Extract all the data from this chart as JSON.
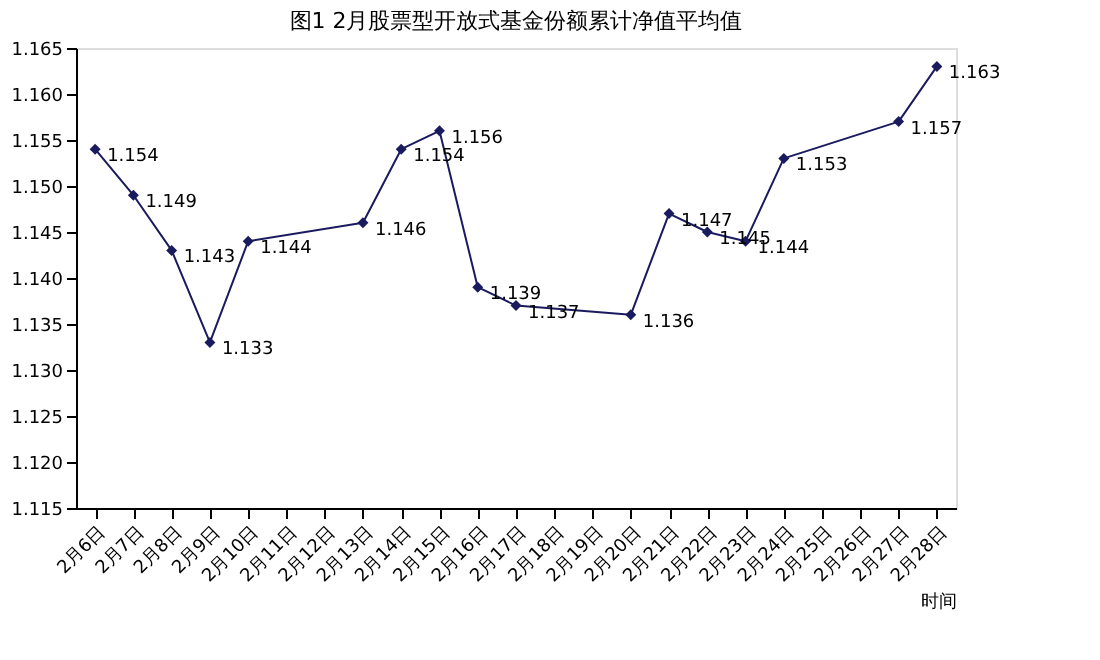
{
  "chart_data": {
    "type": "line",
    "title": "图1  2月股票型开放式基金份额累计净值平均值",
    "xlabel": "时间",
    "categories": [
      "2月6日",
      "2月7日",
      "2月8日",
      "2月9日",
      "2月10日",
      "2月11日",
      "2月12日",
      "2月13日",
      "2月14日",
      "2月15日",
      "2月16日",
      "2月17日",
      "2月18日",
      "2月19日",
      "2月20日",
      "2月21日",
      "2月22日",
      "2月23日",
      "2月24日",
      "2月25日",
      "2月26日",
      "2月27日",
      "2月28日"
    ],
    "series": [
      {
        "color": "#1a1a5e",
        "values": [
          1.154,
          1.149,
          1.143,
          1.133,
          1.144,
          null,
          null,
          1.146,
          1.154,
          1.156,
          1.139,
          1.137,
          null,
          null,
          1.136,
          1.147,
          1.145,
          1.144,
          1.153,
          null,
          null,
          1.157,
          1.163
        ]
      }
    ],
    "ylim": [
      1.115,
      1.165
    ],
    "yticks": [
      1.115,
      {
        "value": 1.12,
        "label": "1.120"
      },
      1.125,
      {
        "value": 1.13,
        "label": "1.130"
      },
      1.135,
      {
        "value": 1.14,
        "label": "1.140"
      },
      1.145,
      {
        "value": 1.15,
        "label": "1.150"
      },
      1.155,
      {
        "value": 1.16,
        "label": "1.160"
      },
      1.165
    ],
    "grid": false,
    "marker": "diamond",
    "line_style": "solid",
    "data_labels": true
  }
}
